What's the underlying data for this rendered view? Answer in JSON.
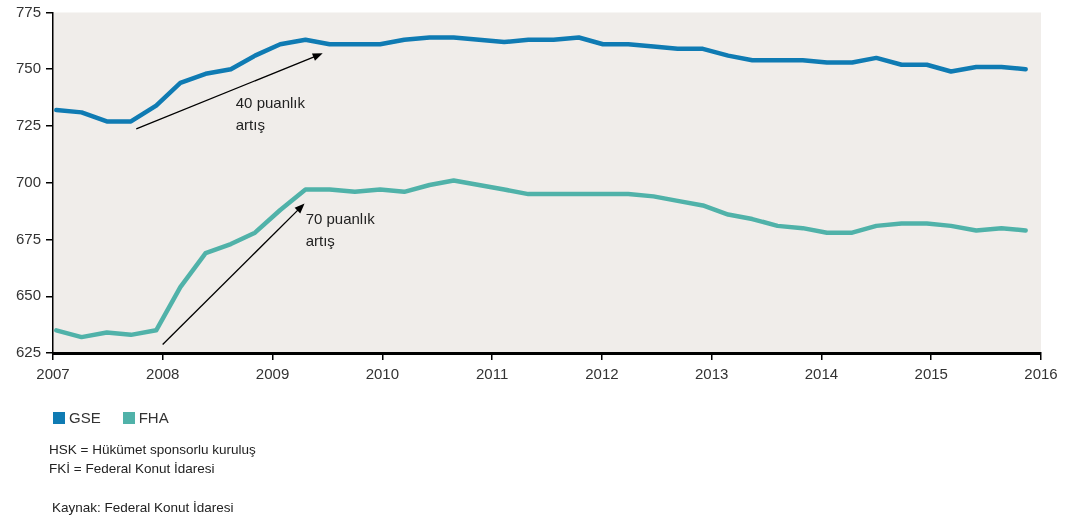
{
  "chart_data": {
    "type": "line",
    "x": [
      2007.03,
      2007.26,
      2007.49,
      2007.71,
      2007.94,
      2008.16,
      2008.39,
      2008.62,
      2008.84,
      2009.07,
      2009.3,
      2009.52,
      2009.75,
      2009.98,
      2010.2,
      2010.43,
      2010.65,
      2010.88,
      2011.11,
      2011.33,
      2011.56,
      2011.79,
      2012.01,
      2012.24,
      2012.47,
      2012.69,
      2012.92,
      2013.15,
      2013.37,
      2013.6,
      2013.83,
      2014.05,
      2014.28,
      2014.5,
      2014.73,
      2014.96,
      2015.18,
      2015.41,
      2015.64,
      2015.86
    ],
    "series": [
      {
        "name": "GSE",
        "color": "#0f7bb3",
        "values": [
          732,
          731,
          727,
          727,
          734,
          744,
          748,
          750,
          756,
          761,
          763,
          761,
          761,
          761,
          763,
          764,
          764,
          763,
          762,
          763,
          763,
          764,
          761,
          761,
          760,
          759,
          759,
          756,
          754,
          754,
          754,
          753,
          753,
          755,
          752,
          752,
          749,
          751,
          751,
          750
        ]
      },
      {
        "name": "FHA",
        "color": "#50b2a9",
        "values": [
          635,
          632,
          634,
          633,
          635,
          654,
          669,
          673,
          678,
          688,
          697,
          697,
          696,
          697,
          696,
          699,
          701,
          699,
          697,
          695,
          695,
          695,
          695,
          695,
          694,
          692,
          690,
          686,
          684,
          681,
          680,
          678,
          678,
          681,
          682,
          682,
          681,
          679,
          680,
          679
        ]
      }
    ],
    "xlim": [
      2007,
      2016
    ],
    "xticks": [
      2007,
      2008,
      2009,
      2010,
      2011,
      2012,
      2013,
      2014,
      2015,
      2016
    ],
    "ylim": [
      625,
      775
    ],
    "yticks": [
      625,
      650,
      675,
      700,
      725,
      750,
      775
    ],
    "legend": "bottom left",
    "annotations": [
      "40 puanlık artış",
      "70 puanlık artış",
      "HSK = Hükümet sponsorlu kuruluş",
      "FKİ = Federal Konut İdaresi",
      "Kaynak: Federal Konut İdaresi"
    ]
  }
}
